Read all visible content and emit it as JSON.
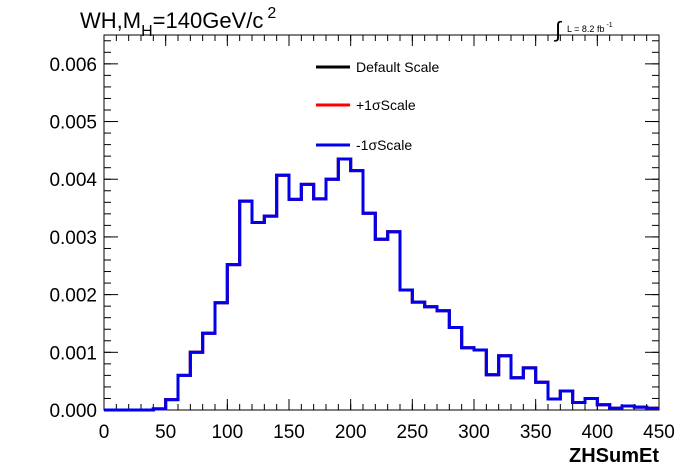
{
  "chart_data": {
    "type": "line",
    "style": "step-histogram",
    "title": {
      "prefix": "WH,M",
      "subscript": "H",
      "rest": "=140GeV/c",
      "superscript": "2"
    },
    "luminosity": {
      "integral_sign": "∫",
      "text": "L = 8.2 fb",
      "superscript": "-1"
    },
    "xlabel": "ZHSumEt",
    "ylabel": "",
    "xlim": [
      0,
      450
    ],
    "ylim": [
      0,
      0.0065
    ],
    "x_ticks": [
      "0",
      "50",
      "100",
      "150",
      "200",
      "250",
      "300",
      "350",
      "400",
      "450"
    ],
    "y_ticks": [
      "0.000",
      "0.001",
      "0.002",
      "0.003",
      "0.004",
      "0.005",
      "0.006"
    ],
    "bin_width": 10,
    "bin_edges_start": 0,
    "grid": false,
    "legend_position": "top-center",
    "series": [
      {
        "name": "Default Scale",
        "color": "#000000",
        "values": [
          0,
          0,
          0,
          0,
          2e-05,
          0.00018,
          0.0006,
          0.001,
          0.00133,
          0.00186,
          0.00252,
          0.00362,
          0.00325,
          0.00336,
          0.00407,
          0.00365,
          0.00391,
          0.00366,
          0.004,
          0.00435,
          0.00415,
          0.00341,
          0.00296,
          0.00309,
          0.00208,
          0.00187,
          0.00179,
          0.00172,
          0.00143,
          0.00108,
          0.00104,
          0.00061,
          0.00094,
          0.00056,
          0.00073,
          0.00048,
          0.00019,
          0.00033,
          0.00013,
          0.0002,
          9e-05,
          3e-05,
          7e-05,
          5e-05,
          3e-05
        ]
      },
      {
        "name": "+1σScale",
        "color": "#ff0000",
        "values": [
          0,
          0,
          0,
          0,
          2e-05,
          0.00018,
          0.0006,
          0.001,
          0.00133,
          0.00186,
          0.00252,
          0.00362,
          0.00325,
          0.00336,
          0.00407,
          0.00365,
          0.00391,
          0.00366,
          0.004,
          0.00435,
          0.00415,
          0.00341,
          0.00296,
          0.00309,
          0.00208,
          0.00187,
          0.00179,
          0.00172,
          0.00143,
          0.00108,
          0.00104,
          0.00061,
          0.00094,
          0.00056,
          0.00073,
          0.00048,
          0.00019,
          0.00033,
          0.00013,
          0.0002,
          9e-05,
          3e-05,
          7e-05,
          5e-05,
          3e-05
        ]
      },
      {
        "name": "-1σScale",
        "color": "#0000ee",
        "values": [
          0,
          0,
          0,
          0,
          2e-05,
          0.00018,
          0.0006,
          0.001,
          0.00133,
          0.00186,
          0.00252,
          0.00362,
          0.00325,
          0.00336,
          0.00407,
          0.00365,
          0.00391,
          0.00366,
          0.004,
          0.00435,
          0.00415,
          0.00341,
          0.00296,
          0.00309,
          0.00208,
          0.00187,
          0.00179,
          0.00172,
          0.00143,
          0.00108,
          0.00104,
          0.00061,
          0.00094,
          0.00056,
          0.00073,
          0.00048,
          0.00019,
          0.00033,
          0.00013,
          0.0002,
          9e-05,
          3e-05,
          7e-05,
          5e-05,
          3e-05
        ]
      }
    ]
  }
}
